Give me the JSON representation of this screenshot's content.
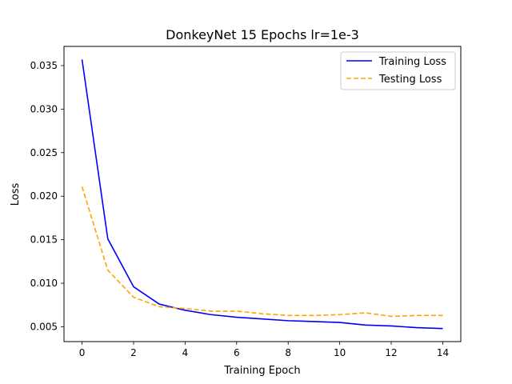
{
  "chart_data": {
    "type": "line",
    "title": "DonkeyNet 15 Epochs lr=1e-3",
    "xlabel": "Training Epoch",
    "ylabel": "Loss",
    "xlim": [
      -0.7,
      14.7
    ],
    "ylim": [
      0.0033,
      0.0372
    ],
    "x_ticks": [
      0,
      2,
      4,
      6,
      8,
      10,
      12,
      14
    ],
    "y_ticks": [
      0.005,
      0.01,
      0.015,
      0.02,
      0.025,
      0.03,
      0.035
    ],
    "x_tick_labels": [
      "0",
      "2",
      "4",
      "6",
      "8",
      "10",
      "12",
      "14"
    ],
    "y_tick_labels": [
      "0.005",
      "0.010",
      "0.015",
      "0.020",
      "0.025",
      "0.030",
      "0.035"
    ],
    "grid": false,
    "legend_position": "upper right",
    "x": [
      0,
      1,
      2,
      3,
      4,
      5,
      6,
      7,
      8,
      9,
      10,
      11,
      12,
      13,
      14
    ],
    "series": [
      {
        "name": "Training Loss",
        "color": "#0000ff",
        "linestyle": "solid",
        "values": [
          0.0357,
          0.0151,
          0.0096,
          0.0076,
          0.0069,
          0.0064,
          0.0061,
          0.0059,
          0.0057,
          0.0056,
          0.0055,
          0.0052,
          0.0051,
          0.0049,
          0.0048
        ]
      },
      {
        "name": "Testing Loss",
        "color": "#ffa500",
        "linestyle": "dashed",
        "values": [
          0.0211,
          0.0115,
          0.0084,
          0.0073,
          0.0071,
          0.0068,
          0.0068,
          0.0065,
          0.0063,
          0.0063,
          0.0064,
          0.0066,
          0.0062,
          0.0063,
          0.0063
        ]
      }
    ]
  }
}
